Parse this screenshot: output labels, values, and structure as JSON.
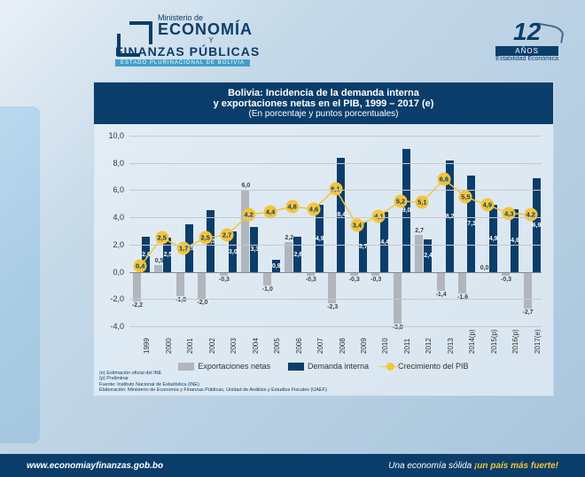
{
  "header": {
    "ministry": "Ministerio de",
    "brand1": "ECONOMÍA",
    "y": "Y",
    "brand2": "FINANZAS PÚBLICAS",
    "sub": "ESTADO PLURINACIONAL DE BOLIVIA",
    "years": "12",
    "anos": "AÑOS",
    "estab": "Estabilidad Económica"
  },
  "chart": {
    "title1": "Bolivia: Incidencia de la demanda interna",
    "title2": "y exportaciones netas en el PIB, 1999 – 2017 (e)",
    "title3": "(En porcentaje y puntos porcentuales)",
    "ylim": [
      -4,
      10
    ],
    "yticks": [
      "-4,0",
      "-2,0",
      "0,0",
      "2,0",
      "4,0",
      "6,0",
      "8,0",
      "10,0"
    ],
    "ytick_vals": [
      -4,
      -2,
      0,
      2,
      4,
      6,
      8,
      10
    ],
    "years": [
      "1999",
      "2000",
      "2001",
      "2002",
      "2003",
      "2004",
      "2005",
      "2006",
      "2007",
      "2008",
      "2009",
      "2010",
      "2011",
      "2012",
      "2013",
      "2014(p)",
      "2015(p)",
      "2016(p)",
      "2017(e)"
    ],
    "exp": [
      -2.2,
      0.5,
      -1.8,
      -2.0,
      -0.3,
      6.0,
      -1.0,
      2.2,
      -0.3,
      -2.3,
      -0.3,
      -0.3,
      -3.8,
      2.7,
      -1.4,
      -1.6,
      0.0,
      -0.3,
      -2.7
    ],
    "dem": [
      2.6,
      2.5,
      3.5,
      4.5,
      3.0,
      3.3,
      0.9,
      2.6,
      4.9,
      8.4,
      3.7,
      4.4,
      9.0,
      2.4,
      8.2,
      7.1,
      4.9,
      4.6,
      6.9
    ],
    "pib": [
      0.4,
      2.5,
      1.7,
      2.5,
      2.7,
      4.2,
      4.4,
      4.8,
      4.6,
      6.1,
      3.4,
      4.1,
      5.2,
      5.1,
      6.8,
      5.5,
      4.9,
      4.3,
      4.2
    ],
    "legend": {
      "exp": "Exportaciones netas",
      "dem": "Demanda interna",
      "pib": "Crecimiento del PIB"
    },
    "colors": {
      "exp": "#b0b6bc",
      "dem": "#0b3d6b",
      "pib": "#f2c53d",
      "grid": "#c8c8c8",
      "title_bg": "#0b3d6b"
    },
    "notes": [
      "(e) Estimación oficial del INE",
      "(p) Preliminar",
      "Fuente: Instituto Nacional de Estadística (INE)",
      "Elaboración: Ministerio de Economía y Finanzas Públicas, Unidad de Análisis y Estudios Fiscales (UAEF)"
    ]
  },
  "footer": {
    "url": "www.economiayfinanzas.gob.bo",
    "slogan1": "Una economía sólida ",
    "slogan2": "¡un país más fuerte!"
  }
}
